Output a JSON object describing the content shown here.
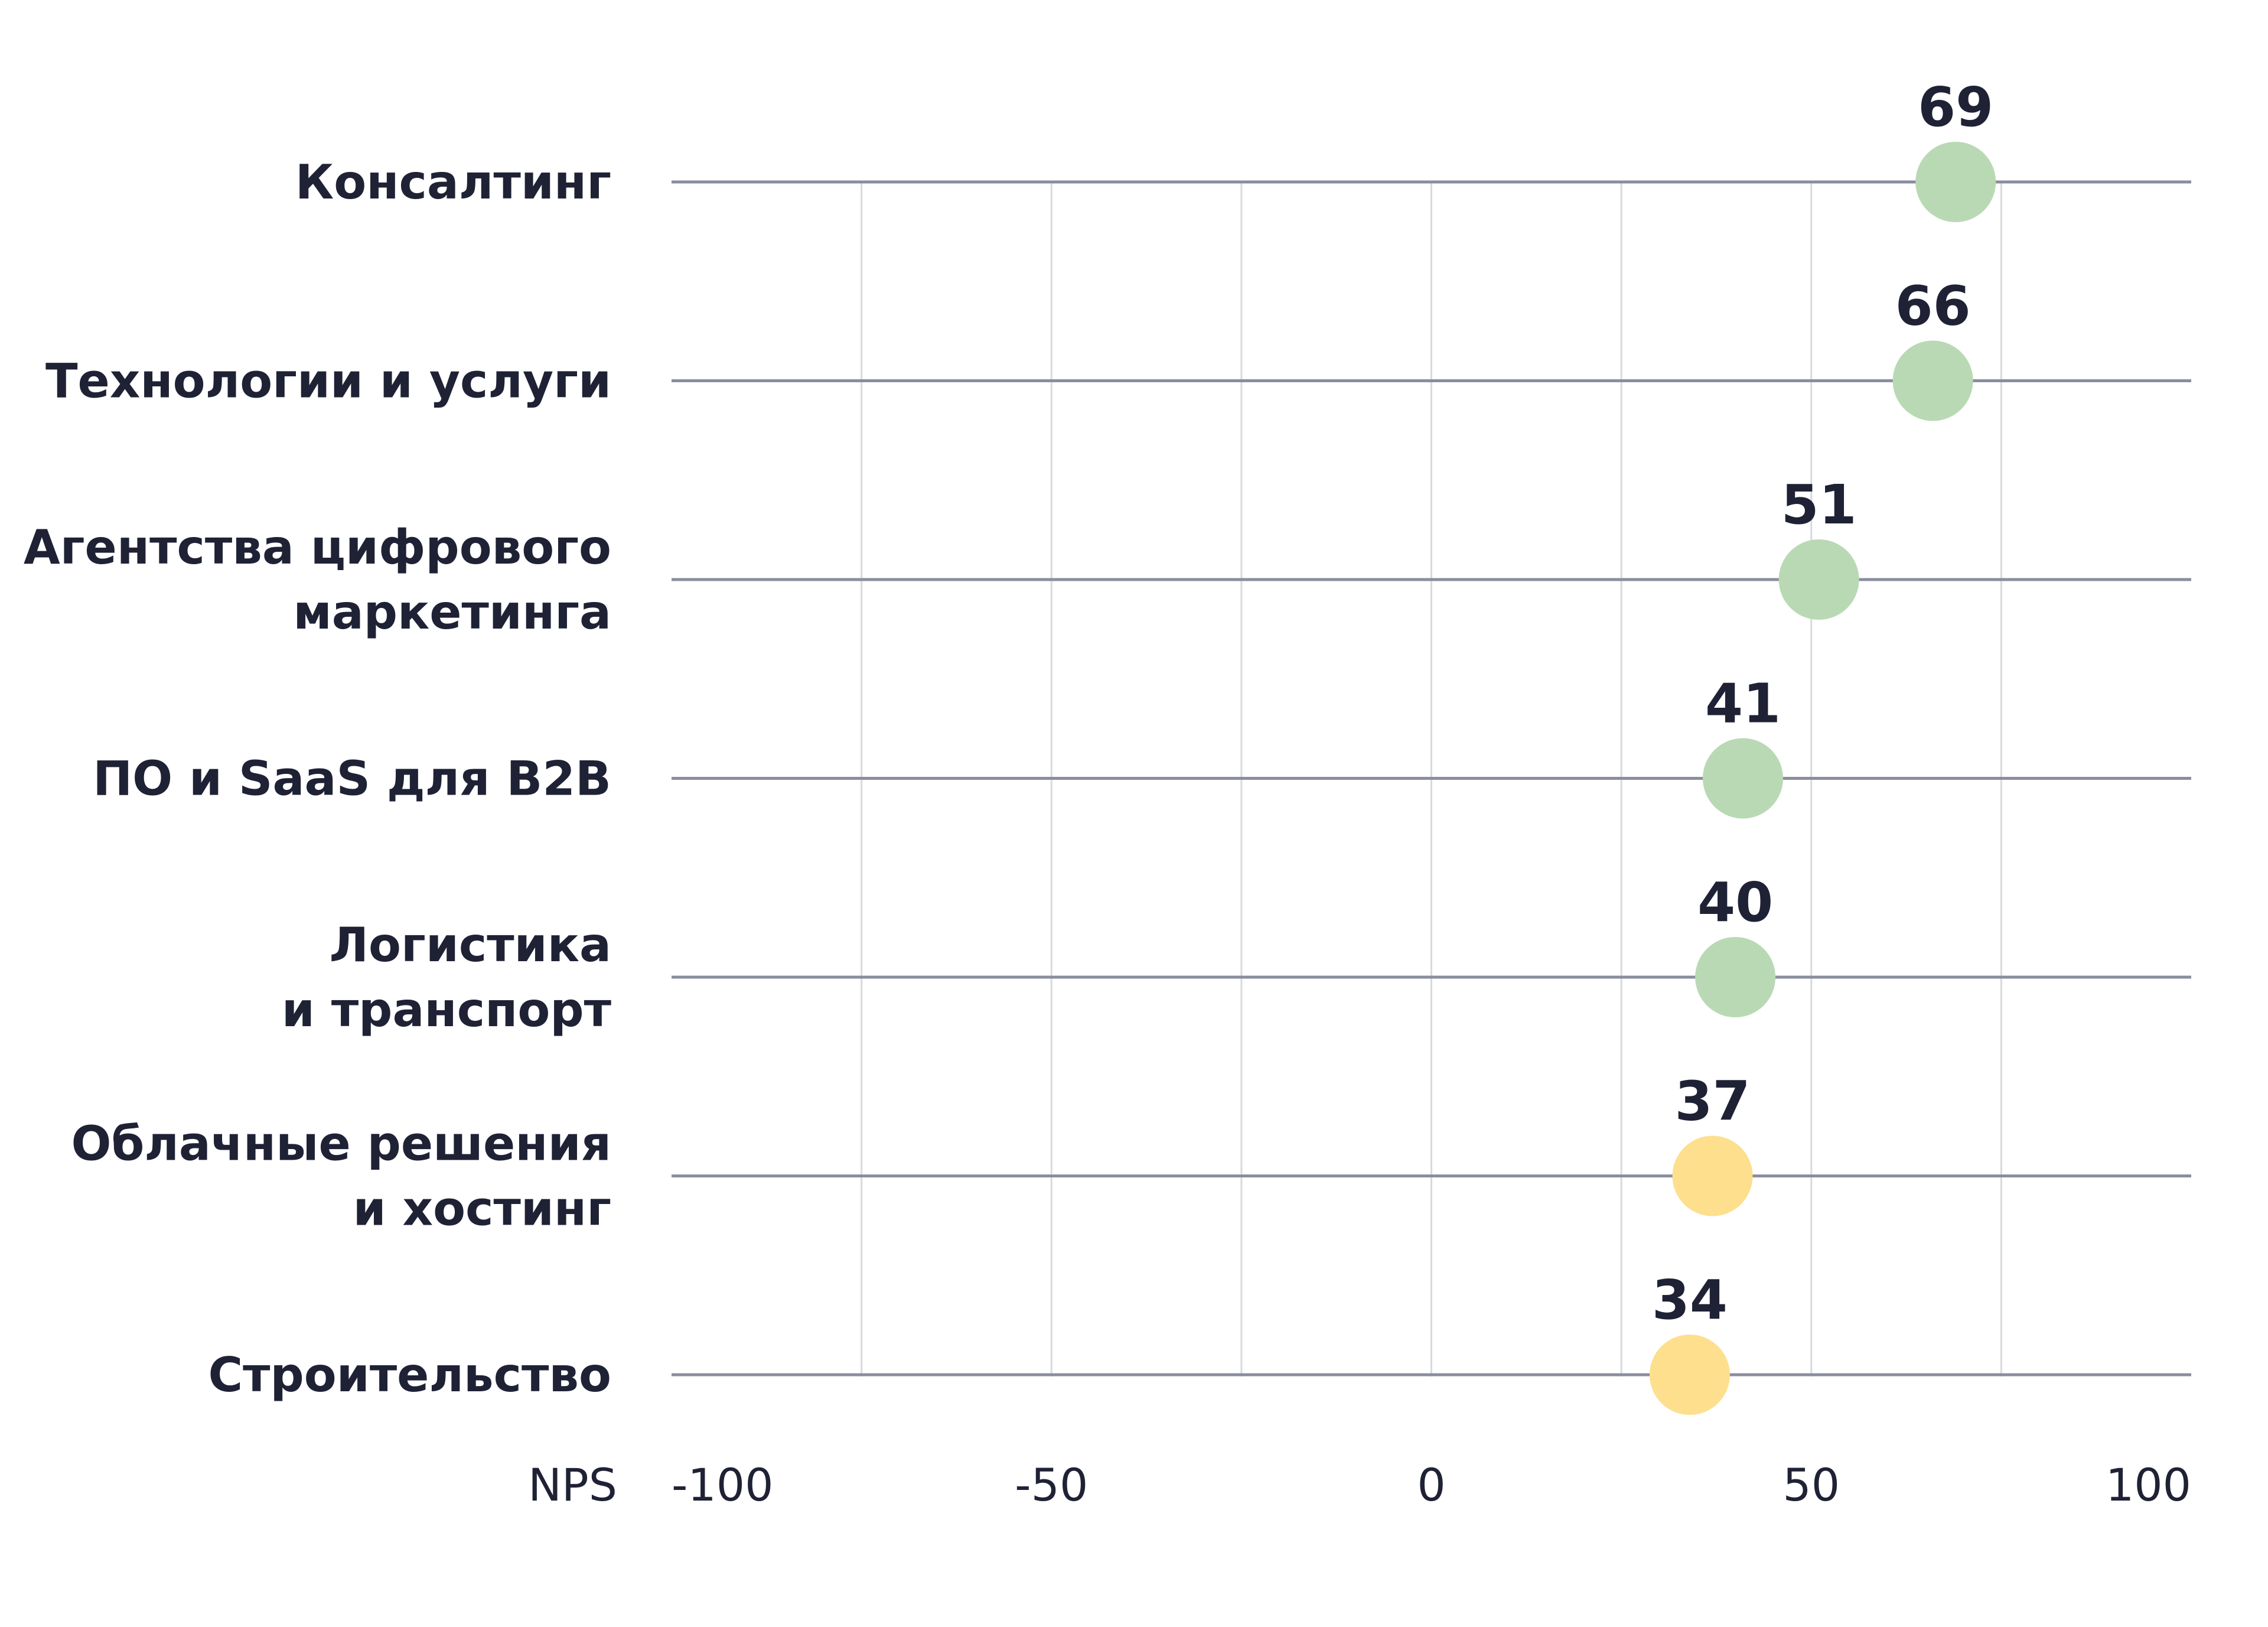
{
  "chart_data": {
    "type": "scatter",
    "title": "",
    "xlabel": "NPS",
    "xlim": [
      -100,
      100
    ],
    "xticks": [
      -100,
      -50,
      0,
      50,
      100
    ],
    "xtick_labels": [
      "-100",
      "-50",
      "0",
      "50",
      "100"
    ],
    "grid": "vertical",
    "categories": [
      [
        "Консалтинг"
      ],
      [
        "Технологии и услуги"
      ],
      [
        "Агентства цифрового",
        "маркетинга"
      ],
      [
        "ПО и SaaS для B2B"
      ],
      [
        "Логистика",
        "и транспорт"
      ],
      [
        "Облачные решения",
        "и хостинг"
      ],
      [
        "Строительство"
      ]
    ],
    "values": [
      69,
      66,
      51,
      41,
      40,
      37,
      34
    ],
    "value_labels": [
      "69",
      "66",
      "51",
      "41",
      "40",
      "37",
      "34"
    ],
    "point_colors": [
      "#b9d9b4",
      "#b9d9b4",
      "#b9d9b4",
      "#b9d9b4",
      "#b9d9b4",
      "#fddf8e",
      "#fddf8e"
    ]
  }
}
